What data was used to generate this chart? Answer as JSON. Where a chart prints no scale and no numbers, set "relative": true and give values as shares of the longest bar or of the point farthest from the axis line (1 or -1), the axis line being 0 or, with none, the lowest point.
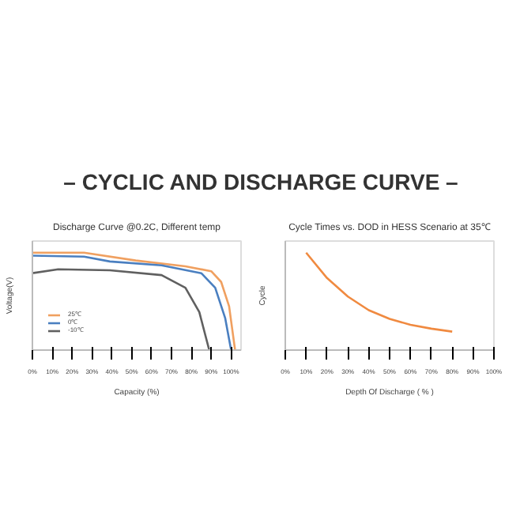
{
  "chart_data": [
    {
      "type": "other",
      "title": "– CYCLIC AND DISCHARGE CURVE –"
    },
    {
      "type": "line",
      "title": "Discharge Curve @0.2C, Different temp",
      "xlabel": "Capacity (%)",
      "ylabel": "Voltage(V)",
      "relative": true,
      "xlim": [
        0,
        105
      ],
      "xticks": [
        {
          "value": 0,
          "label": "0%"
        },
        {
          "value": 10,
          "label": "10%"
        },
        {
          "value": 20,
          "label": "20%"
        },
        {
          "value": 30,
          "label": "30%"
        },
        {
          "value": 40,
          "label": "40%"
        },
        {
          "value": 50,
          "label": "50%"
        },
        {
          "value": 60,
          "label": "60%"
        },
        {
          "value": 70,
          "label": "70%"
        },
        {
          "value": 80,
          "label": "80%"
        },
        {
          "value": 90,
          "label": "90%"
        },
        {
          "value": 100,
          "label": "100%"
        }
      ],
      "legend": "bottom left",
      "grid": false,
      "series": [
        {
          "name": "25℃",
          "color": "#f0a060",
          "x": [
            0,
            26,
            52,
            77,
            90,
            95,
            99,
            102
          ],
          "values": [
            1.0,
            1.0,
            0.92,
            0.86,
            0.81,
            0.7,
            0.45,
            0
          ]
        },
        {
          "name": "0℃",
          "color": "#4a7fc0",
          "x": [
            0,
            26,
            39,
            65,
            85,
            92,
            97,
            100
          ],
          "values": [
            0.97,
            0.96,
            0.91,
            0.87,
            0.79,
            0.64,
            0.33,
            0
          ]
        },
        {
          "name": "-10℃",
          "color": "#606060",
          "x": [
            0,
            13,
            39,
            65,
            77,
            84,
            89
          ],
          "values": [
            0.79,
            0.83,
            0.82,
            0.77,
            0.64,
            0.39,
            0
          ]
        }
      ]
    },
    {
      "type": "line",
      "title": "Cycle Times vs. DOD in HESS Scenario at 35℃",
      "xlabel": "Depth Of Discharge ( % )",
      "ylabel": "Cycle",
      "relative": true,
      "xlim": [
        0,
        100
      ],
      "xticks": [
        {
          "value": 0,
          "label": "0%"
        },
        {
          "value": 10,
          "label": "10%"
        },
        {
          "value": 20,
          "label": "20%"
        },
        {
          "value": 30,
          "label": "30%"
        },
        {
          "value": 40,
          "label": "40%"
        },
        {
          "value": 50,
          "label": "50%"
        },
        {
          "value": 60,
          "label": "60%"
        },
        {
          "value": 70,
          "label": "70%"
        },
        {
          "value": 80,
          "label": "80%"
        },
        {
          "value": 90,
          "label": "90%"
        },
        {
          "value": 100,
          "label": "100%"
        }
      ],
      "grid": false,
      "series": [
        {
          "color": "#f08a40",
          "x": [
            10,
            20,
            30,
            40,
            50,
            60,
            70,
            80
          ],
          "values": [
            1.0,
            0.74,
            0.55,
            0.41,
            0.32,
            0.26,
            0.22,
            0.19
          ]
        }
      ]
    }
  ]
}
